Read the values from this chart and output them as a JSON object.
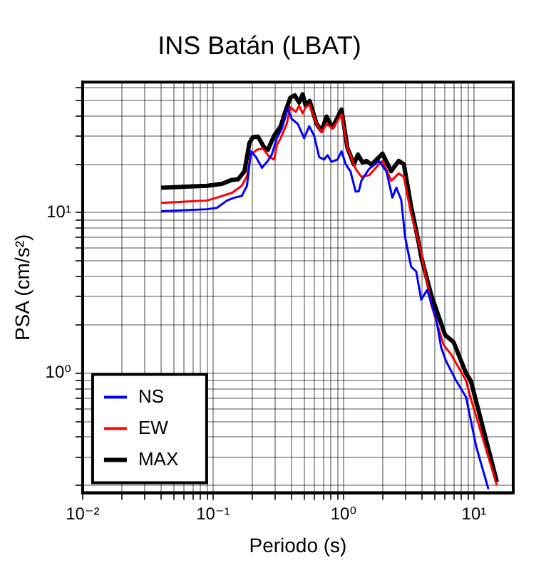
{
  "chart_data": {
    "type": "line",
    "title": "INS Batán (LBAT)",
    "xlabel": "Periodo (s)",
    "ylabel": "PSA (cm/s²)",
    "log": "xy",
    "grid": true,
    "legend": "bottom left",
    "marker": "none",
    "line_style": "solid",
    "xlim": [
      0.01,
      20
    ],
    "ylim": [
      0.18,
      65
    ],
    "xticks": [
      {
        "value": 0.01,
        "label": "10⁻²"
      },
      {
        "value": 0.02,
        "label": null
      },
      {
        "value": 0.03,
        "label": null
      },
      {
        "value": 0.04,
        "label": null
      },
      {
        "value": 0.05,
        "label": null
      },
      {
        "value": 0.06,
        "label": null
      },
      {
        "value": 0.07,
        "label": null
      },
      {
        "value": 0.08,
        "label": null
      },
      {
        "value": 0.09,
        "label": null
      },
      {
        "value": 0.1,
        "label": "10⁻¹"
      },
      {
        "value": 0.2,
        "label": null
      },
      {
        "value": 0.3,
        "label": null
      },
      {
        "value": 0.4,
        "label": null
      },
      {
        "value": 0.5,
        "label": null
      },
      {
        "value": 0.6,
        "label": null
      },
      {
        "value": 0.7,
        "label": null
      },
      {
        "value": 0.8,
        "label": null
      },
      {
        "value": 0.9,
        "label": null
      },
      {
        "value": 1,
        "label": "10⁰"
      },
      {
        "value": 2,
        "label": null
      },
      {
        "value": 3,
        "label": null
      },
      {
        "value": 4,
        "label": null
      },
      {
        "value": 5,
        "label": null
      },
      {
        "value": 6,
        "label": null
      },
      {
        "value": 7,
        "label": null
      },
      {
        "value": 8,
        "label": null
      },
      {
        "value": 9,
        "label": null
      },
      {
        "value": 10,
        "label": "10¹"
      }
    ],
    "yticks": [
      {
        "value": 0.2,
        "label": null
      },
      {
        "value": 0.3,
        "label": null
      },
      {
        "value": 0.4,
        "label": null
      },
      {
        "value": 0.5,
        "label": null
      },
      {
        "value": 0.6,
        "label": null
      },
      {
        "value": 0.7,
        "label": null
      },
      {
        "value": 0.8,
        "label": null
      },
      {
        "value": 0.9,
        "label": null
      },
      {
        "value": 1,
        "label": "10⁰"
      },
      {
        "value": 2,
        "label": null
      },
      {
        "value": 3,
        "label": null
      },
      {
        "value": 4,
        "label": null
      },
      {
        "value": 5,
        "label": null
      },
      {
        "value": 6,
        "label": null
      },
      {
        "value": 7,
        "label": null
      },
      {
        "value": 8,
        "label": null
      },
      {
        "value": 9,
        "label": null
      },
      {
        "value": 10,
        "label": "10¹"
      },
      {
        "value": 20,
        "label": null
      },
      {
        "value": 30,
        "label": null
      },
      {
        "value": 40,
        "label": null
      },
      {
        "value": 50,
        "label": null
      },
      {
        "value": 60,
        "label": null
      }
    ],
    "series": [
      {
        "name": "NS",
        "color": "#0000ff",
        "x": [
          0.04,
          0.09,
          0.107,
          0.128,
          0.146,
          0.166,
          0.182,
          0.195,
          0.213,
          0.237,
          0.263,
          0.282,
          0.308,
          0.337,
          0.374,
          0.401,
          0.446,
          0.499,
          0.546,
          0.596,
          0.65,
          0.71,
          0.755,
          0.809,
          0.9,
          0.966,
          1.04,
          1.13,
          1.24,
          1.31,
          1.37,
          1.57,
          1.87,
          2.13,
          2.37,
          2.54,
          2.77,
          2.97,
          3.3,
          3.61,
          3.94,
          4.38,
          5.13,
          5.6,
          6.11,
          7.29,
          8.69,
          10.4,
          12.9
        ],
        "values": [
          10.2,
          10.5,
          10.7,
          11.9,
          12.4,
          12.7,
          14.7,
          24.1,
          22.2,
          19.0,
          21.0,
          23.0,
          29.1,
          33.4,
          44.5,
          38.3,
          35.7,
          29.1,
          34.5,
          30.1,
          22.2,
          21.4,
          22.8,
          20.7,
          21.4,
          24.1,
          20.0,
          18.1,
          13.5,
          13.6,
          15.8,
          18.7,
          21.0,
          18.1,
          12.4,
          14.3,
          12.0,
          7.0,
          4.6,
          4.3,
          2.87,
          3.3,
          2.19,
          1.45,
          1.19,
          0.9,
          0.71,
          0.35,
          0.19
        ]
      },
      {
        "name": "EW",
        "color": "#ff0000",
        "x": [
          0.04,
          0.09,
          0.107,
          0.14,
          0.166,
          0.182,
          0.195,
          0.217,
          0.241,
          0.27,
          0.294,
          0.308,
          0.33,
          0.367,
          0.391,
          0.431,
          0.457,
          0.486,
          0.513,
          0.55,
          0.622,
          0.679,
          0.741,
          0.824,
          0.966,
          1.07,
          1.24,
          1.37,
          1.57,
          1.87,
          1.99,
          2.32,
          2.65,
          2.9,
          3.3,
          3.94,
          4.12,
          4.7,
          5.85,
          6.67,
          8.69,
          9.49,
          15.0
        ],
        "values": [
          11.5,
          11.9,
          12.4,
          13.3,
          14.7,
          16.9,
          23.0,
          24.6,
          25.1,
          22.2,
          21.4,
          26.3,
          29.1,
          35.7,
          45.4,
          42.4,
          46.3,
          41.5,
          45.4,
          47.0,
          35.7,
          31.6,
          35.7,
          33.4,
          40.9,
          25.4,
          18.7,
          16.7,
          17.1,
          20.0,
          21.0,
          15.8,
          17.5,
          16.7,
          9.8,
          5.7,
          4.63,
          2.69,
          1.5,
          1.31,
          0.9,
          0.69,
          0.2
        ]
      },
      {
        "name": "MAX",
        "color": "#000000",
        "x": [
          0.04,
          0.09,
          0.117,
          0.14,
          0.155,
          0.174,
          0.19,
          0.202,
          0.221,
          0.247,
          0.263,
          0.294,
          0.33,
          0.352,
          0.391,
          0.423,
          0.457,
          0.486,
          0.513,
          0.55,
          0.622,
          0.679,
          0.741,
          0.824,
          0.966,
          1.07,
          1.2,
          1.29,
          1.4,
          1.5,
          1.64,
          1.99,
          2.32,
          2.65,
          2.9,
          3.3,
          3.77,
          3.94,
          4.7,
          6.01,
          6.98,
          8.69,
          9.49,
          15.0
        ],
        "values": [
          14.3,
          14.7,
          15.1,
          16.0,
          16.1,
          18.1,
          27.2,
          29.5,
          29.7,
          25.4,
          24.6,
          30.1,
          34.5,
          40.9,
          52.0,
          53.8,
          48.5,
          54.6,
          46.3,
          49.6,
          35.7,
          32.3,
          39.6,
          33.9,
          43.9,
          25.4,
          20.0,
          23.0,
          20.5,
          21.0,
          19.9,
          23.3,
          18.1,
          21.0,
          20.0,
          10.9,
          6.5,
          5.3,
          3.08,
          1.73,
          1.56,
          1.0,
          0.89,
          0.21
        ]
      }
    ]
  }
}
